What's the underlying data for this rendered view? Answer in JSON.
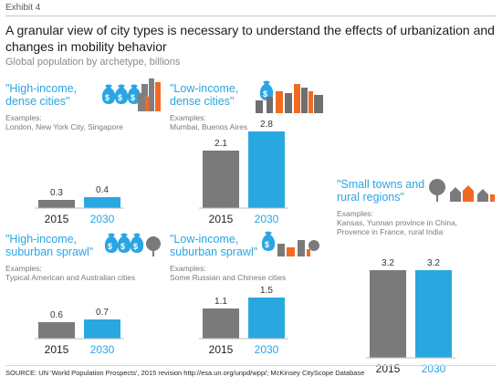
{
  "exhibit": "Exhibit 4",
  "title": "A granular view of city types is necessary to understand the effects of urbanization and changes in mobility behavior",
  "subtitle": "Global population by archetype, billions",
  "colors": {
    "bar_2015": "#7a7a7a",
    "bar_2030": "#29a8e0",
    "accent": "#2aa5e3"
  },
  "years": [
    "2015",
    "2030"
  ],
  "panels": {
    "hi_dense": {
      "title": "\"High-income,\ndense cities\"",
      "examples": "Examples:\nLondon, New York City, Singapore",
      "icon": "money-bags-skyline-icon"
    },
    "lo_dense": {
      "title": "\"Low-income,\ndense cities\"",
      "examples": "Examples:\nMumbai, Buenos Aires",
      "icon": "money-bag-dense-city-icon"
    },
    "small_towns": {
      "title": "\"Small towns and\nrural regions\"",
      "examples": "Examples:\nKansas, Yunnan province in China,\nProvence in France, rural India",
      "icon": "town-trees-icon"
    },
    "hi_sprawl": {
      "title": "\"High-income,\nsuburban sprawl\"",
      "examples": "Examples:\nTypical American and Australian cities",
      "icon": "money-bags-suburb-icon"
    },
    "lo_sprawl": {
      "title": "\"Low-income,\nsuburban sprawl\"",
      "examples": "Examples:\nSome Russian and Chinese cities",
      "icon": "money-bag-suburb-icon"
    }
  },
  "source": "SOURCE: UN 'World Population Prospects', 2015 revision http://esa.un.org/unpd/wpp/; McKinsey CityScope Database",
  "chart_data": [
    {
      "type": "bar",
      "title": "\"High-income, dense cities\"",
      "categories": [
        "2015",
        "2030"
      ],
      "values": [
        0.3,
        0.4
      ]
    },
    {
      "type": "bar",
      "title": "\"Low-income, dense cities\"",
      "categories": [
        "2015",
        "2030"
      ],
      "values": [
        2.1,
        2.8
      ]
    },
    {
      "type": "bar",
      "title": "\"Small towns and rural regions\"",
      "categories": [
        "2015",
        "2030"
      ],
      "values": [
        3.2,
        3.2
      ]
    },
    {
      "type": "bar",
      "title": "\"High-income, suburban sprawl\"",
      "categories": [
        "2015",
        "2030"
      ],
      "values": [
        0.6,
        0.7
      ]
    },
    {
      "type": "bar",
      "title": "\"Low-income, suburban sprawl\"",
      "categories": [
        "2015",
        "2030"
      ],
      "values": [
        1.1,
        1.5
      ]
    }
  ]
}
